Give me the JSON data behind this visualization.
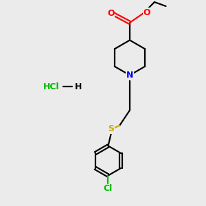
{
  "background_color": "#ebebeb",
  "bond_color": "#000000",
  "nitrogen_color": "#0000ff",
  "oxygen_color": "#ff0000",
  "sulfur_color": "#ccaa00",
  "chlorine_color": "#00bb00",
  "line_width": 1.6,
  "fig_size": [
    3.0,
    3.0
  ],
  "dpi": 100,
  "xlim": [
    0,
    10
  ],
  "ylim": [
    0,
    10
  ]
}
